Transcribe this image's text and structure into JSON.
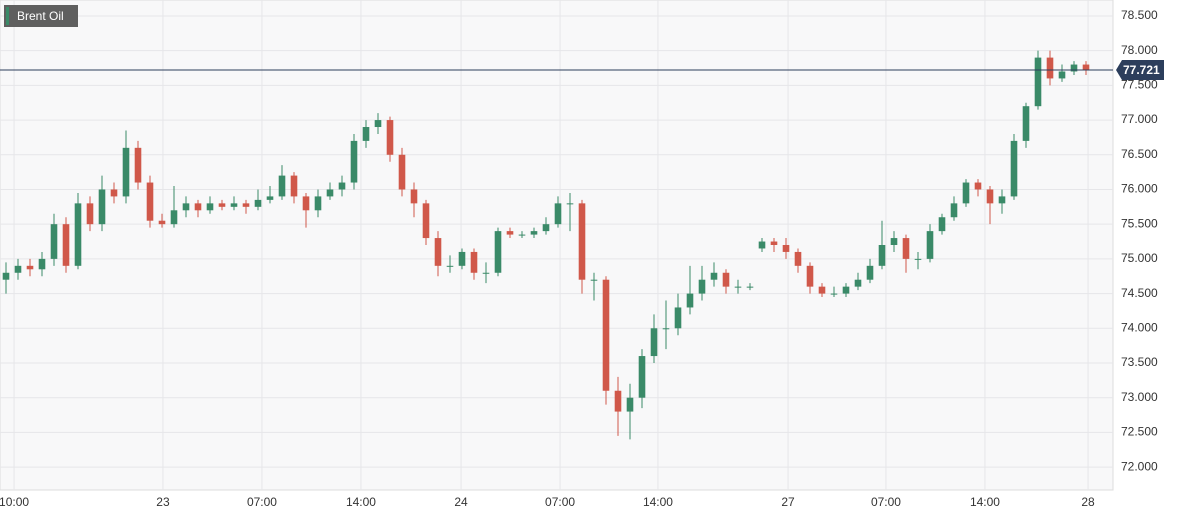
{
  "chart_data": {
    "type": "candlestick",
    "title": "Brent Oil",
    "up_color": "#3a8a68",
    "down_color": "#d0584a",
    "legend_color": "#3a8a68",
    "last_price": 77.721,
    "grid": true,
    "candles": [
      [
        74.7,
        74.95,
        74.5,
        74.8
      ],
      [
        74.8,
        75.0,
        74.7,
        74.9
      ],
      [
        74.9,
        75.0,
        74.75,
        74.85
      ],
      [
        74.85,
        75.1,
        74.75,
        75.0
      ],
      [
        75.0,
        75.65,
        74.9,
        75.5
      ],
      [
        75.5,
        75.6,
        74.8,
        74.9
      ],
      [
        74.9,
        75.95,
        74.85,
        75.8
      ],
      [
        75.8,
        75.9,
        75.4,
        75.5
      ],
      [
        75.5,
        76.2,
        75.4,
        76.0
      ],
      [
        76.0,
        76.1,
        75.8,
        75.9
      ],
      [
        75.9,
        76.85,
        75.8,
        76.6
      ],
      [
        76.6,
        76.7,
        76.0,
        76.1
      ],
      [
        76.1,
        76.2,
        75.45,
        75.55
      ],
      [
        75.55,
        75.65,
        75.45,
        75.5
      ],
      [
        75.5,
        76.05,
        75.45,
        75.7
      ],
      [
        75.7,
        75.9,
        75.6,
        75.8
      ],
      [
        75.8,
        75.85,
        75.6,
        75.7
      ],
      [
        75.7,
        75.9,
        75.65,
        75.8
      ],
      [
        75.8,
        75.85,
        75.7,
        75.75
      ],
      [
        75.75,
        75.9,
        75.7,
        75.8
      ],
      [
        75.8,
        75.85,
        75.65,
        75.75
      ],
      [
        75.75,
        76.0,
        75.7,
        75.85
      ],
      [
        75.85,
        76.05,
        75.8,
        75.9
      ],
      [
        75.9,
        76.35,
        75.85,
        76.2
      ],
      [
        76.2,
        76.25,
        75.8,
        75.9
      ],
      [
        75.9,
        75.95,
        75.45,
        75.7
      ],
      [
        75.7,
        76.0,
        75.6,
        75.9
      ],
      [
        75.9,
        76.1,
        75.85,
        76.0
      ],
      [
        76.0,
        76.2,
        75.9,
        76.1
      ],
      [
        76.1,
        76.8,
        76.0,
        76.7
      ],
      [
        76.7,
        77.0,
        76.6,
        76.9
      ],
      [
        76.9,
        77.1,
        76.8,
        77.0
      ],
      [
        77.0,
        77.05,
        76.4,
        76.5
      ],
      [
        76.5,
        76.6,
        75.9,
        76.0
      ],
      [
        76.0,
        76.1,
        75.6,
        75.8
      ],
      [
        75.8,
        75.85,
        75.2,
        75.3
      ],
      [
        75.3,
        75.4,
        74.75,
        74.9
      ],
      [
        74.9,
        75.05,
        74.8,
        74.9
      ],
      [
        74.9,
        75.15,
        74.85,
        75.1
      ],
      [
        75.1,
        75.15,
        74.7,
        74.8
      ],
      [
        74.8,
        74.95,
        74.65,
        74.8
      ],
      [
        74.8,
        75.45,
        74.75,
        75.4
      ],
      [
        75.4,
        75.45,
        75.3,
        75.35
      ],
      [
        75.35,
        75.4,
        75.3,
        75.35
      ],
      [
        75.35,
        75.45,
        75.3,
        75.4
      ],
      [
        75.4,
        75.6,
        75.35,
        75.5
      ],
      [
        75.5,
        75.9,
        75.45,
        75.8
      ],
      [
        75.8,
        75.95,
        75.4,
        75.8
      ],
      [
        75.8,
        75.85,
        74.5,
        74.7
      ],
      [
        74.7,
        74.8,
        74.4,
        74.7
      ],
      [
        74.7,
        74.75,
        72.9,
        73.1
      ],
      [
        73.1,
        73.3,
        72.45,
        72.8
      ],
      [
        72.8,
        73.2,
        72.4,
        73.0
      ],
      [
        73.0,
        73.7,
        72.85,
        73.6
      ],
      [
        73.6,
        74.2,
        73.5,
        74.0
      ],
      [
        74.0,
        74.4,
        73.7,
        74.0
      ],
      [
        74.0,
        74.5,
        73.9,
        74.3
      ],
      [
        74.3,
        74.9,
        74.2,
        74.5
      ],
      [
        74.5,
        74.9,
        74.4,
        74.7
      ],
      [
        74.7,
        74.95,
        74.6,
        74.8
      ],
      [
        74.8,
        74.85,
        74.5,
        74.6
      ],
      [
        74.6,
        74.7,
        74.5,
        74.6
      ],
      [
        74.6,
        74.65,
        74.55,
        74.6
      ],
      [
        75.15,
        75.3,
        75.1,
        75.25
      ],
      [
        75.25,
        75.3,
        75.1,
        75.2
      ],
      [
        75.2,
        75.3,
        75.0,
        75.1
      ],
      [
        75.1,
        75.15,
        74.8,
        74.9
      ],
      [
        74.9,
        74.95,
        74.5,
        74.6
      ],
      [
        74.6,
        74.65,
        74.45,
        74.5
      ],
      [
        74.5,
        74.6,
        74.45,
        74.5
      ],
      [
        74.5,
        74.65,
        74.45,
        74.6
      ],
      [
        74.6,
        74.8,
        74.55,
        74.7
      ],
      [
        74.7,
        75.0,
        74.65,
        74.9
      ],
      [
        74.9,
        75.55,
        74.85,
        75.2
      ],
      [
        75.2,
        75.4,
        75.1,
        75.3
      ],
      [
        75.3,
        75.35,
        74.8,
        75.0
      ],
      [
        75.0,
        75.1,
        74.85,
        75.0
      ],
      [
        75.0,
        75.5,
        74.95,
        75.4
      ],
      [
        75.4,
        75.65,
        75.35,
        75.6
      ],
      [
        75.6,
        75.9,
        75.55,
        75.8
      ],
      [
        75.8,
        76.15,
        75.75,
        76.1
      ],
      [
        76.1,
        76.15,
        75.9,
        76.0
      ],
      [
        76.0,
        76.05,
        75.5,
        75.8
      ],
      [
        75.8,
        76.0,
        75.65,
        75.9
      ],
      [
        75.9,
        76.8,
        75.85,
        76.7
      ],
      [
        76.7,
        77.25,
        76.6,
        77.2
      ],
      [
        77.2,
        78.0,
        77.15,
        77.9
      ],
      [
        77.9,
        78.0,
        77.5,
        77.6
      ],
      [
        77.6,
        77.8,
        77.55,
        77.7
      ],
      [
        77.7,
        77.85,
        77.65,
        77.8
      ],
      [
        77.8,
        77.85,
        77.65,
        77.72
      ]
    ],
    "xlim": [
      -0.5,
      92.25
    ],
    "xticks": [
      {
        "value": 0.67,
        "label": "10:00"
      },
      {
        "value": 13.08,
        "label": "23"
      },
      {
        "value": 21.33,
        "label": "07:00"
      },
      {
        "value": 29.58,
        "label": "14:00"
      },
      {
        "value": 37.92,
        "label": "24"
      },
      {
        "value": 46.17,
        "label": "07:00"
      },
      {
        "value": 54.33,
        "label": "14:00"
      },
      {
        "value": 65.17,
        "label": "27"
      },
      {
        "value": 73.33,
        "label": "07:00"
      },
      {
        "value": 81.58,
        "label": "14:00"
      },
      {
        "value": 90.17,
        "label": "28"
      }
    ],
    "ylim": [
      71.67,
      78.73
    ],
    "yticks": [
      {
        "value": 72.0,
        "label": "72.000"
      },
      {
        "value": 72.5,
        "label": "72.500"
      },
      {
        "value": 73.0,
        "label": "73.000"
      },
      {
        "value": 73.5,
        "label": "73.500"
      },
      {
        "value": 74.0,
        "label": "74.000"
      },
      {
        "value": 74.5,
        "label": "74.500"
      },
      {
        "value": 75.0,
        "label": "75.000"
      },
      {
        "value": 75.5,
        "label": "75.500"
      },
      {
        "value": 76.0,
        "label": "76.000"
      },
      {
        "value": 76.5,
        "label": "76.500"
      },
      {
        "value": 77.0,
        "label": "77.000"
      },
      {
        "value": 77.5,
        "label": "77.500"
      },
      {
        "value": 78.0,
        "label": "78.000"
      },
      {
        "value": 78.5,
        "label": "78.500"
      }
    ]
  }
}
